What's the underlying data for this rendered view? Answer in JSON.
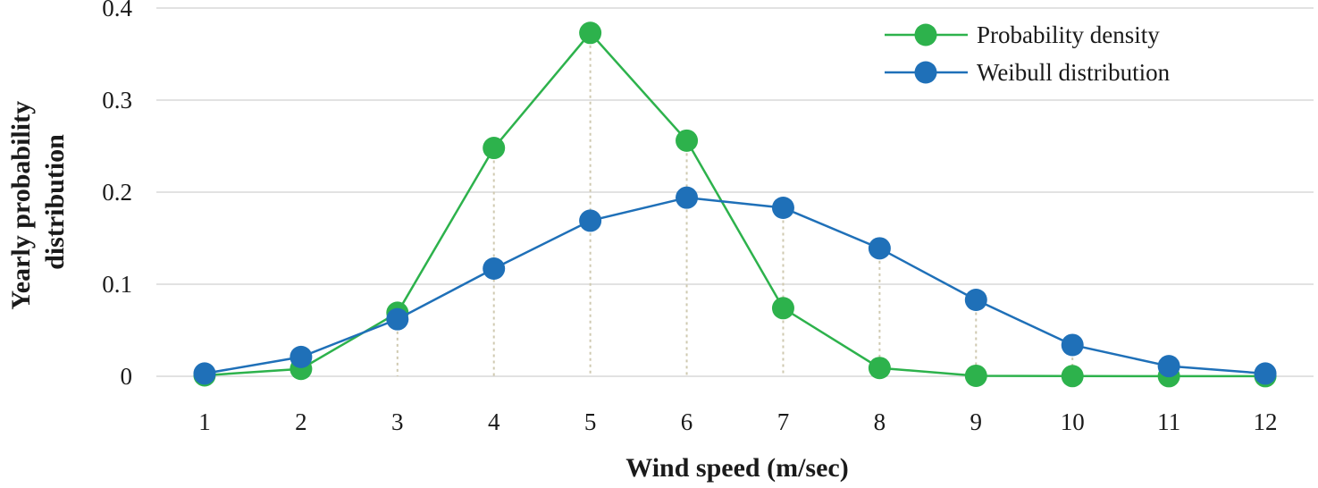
{
  "chart_data": {
    "type": "line",
    "xlabel": "Wind speed (m/sec)",
    "ylabel_lines": [
      "Yearly probability",
      "distribution"
    ],
    "x": [
      1,
      2,
      3,
      4,
      5,
      6,
      7,
      8,
      9,
      10,
      11,
      12
    ],
    "ylim": [
      0,
      0.4
    ],
    "yticks": [
      0,
      0.1,
      0.2,
      0.3,
      0.4
    ],
    "ytick_labels": [
      "0",
      "0.1",
      "0.2",
      "0.3",
      "0.4"
    ],
    "grid": "horizontal",
    "drop_lines": true,
    "legend_position": "top-right",
    "series": [
      {
        "name": "Probability density",
        "color": "#2db24c",
        "values": [
          0.001,
          0.008,
          0.069,
          0.248,
          0.373,
          0.256,
          0.074,
          0.009,
          0.0005,
          0.0002,
          0.0001,
          0.0001
        ]
      },
      {
        "name": "Weibull distribution",
        "color": "#1f70b8",
        "values": [
          0.003,
          0.021,
          0.062,
          0.117,
          0.169,
          0.194,
          0.183,
          0.139,
          0.083,
          0.034,
          0.011,
          0.003
        ]
      }
    ]
  }
}
